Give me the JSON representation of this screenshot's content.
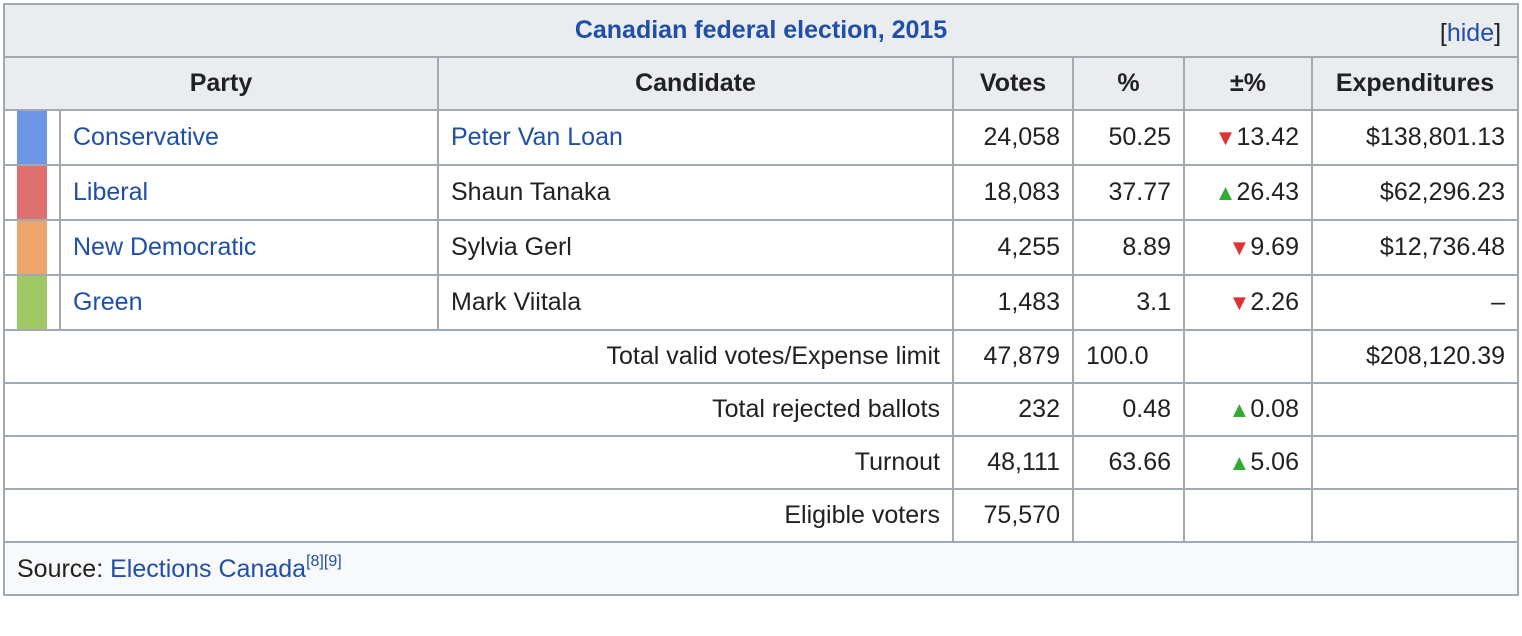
{
  "title": "Canadian federal election, 2015",
  "hide_toggle": {
    "open": "[",
    "label": "hide",
    "close": "]"
  },
  "headers": {
    "party": "Party",
    "candidate": "Candidate",
    "votes": "Votes",
    "percent": "%",
    "change": "±%",
    "expenditures": "Expenditures"
  },
  "colors": {
    "conservative": "#6d96e4",
    "liberal": "#e06f6f",
    "ndp": "#eda56e",
    "green": "#9fc965",
    "link": "#1f4fa8",
    "down": "#dd3333",
    "up": "#33aa33"
  },
  "rows": [
    {
      "party": "Conservative",
      "candidate": "Peter Van Loan",
      "votes": "24,058",
      "percent": "50.25",
      "arrow": "▼",
      "change": "13.42",
      "expenditures": "$138,801.13"
    },
    {
      "party": "Liberal",
      "candidate": "Shaun Tanaka",
      "votes": "18,083",
      "percent": "37.77",
      "arrow": "▲",
      "change": "26.43",
      "expenditures": "$62,296.23"
    },
    {
      "party": "New Democratic",
      "candidate": "Sylvia Gerl",
      "votes": "4,255",
      "percent": "8.89",
      "arrow": "▼",
      "change": "9.69",
      "expenditures": "$12,736.48"
    },
    {
      "party": "Green",
      "candidate": "Mark Viitala",
      "votes": "1,483",
      "percent": "3.1",
      "arrow": "▼",
      "change": "2.26",
      "expenditures": "–"
    }
  ],
  "totals": {
    "valid": {
      "label": "Total valid votes/Expense limit",
      "votes": "47,879",
      "percent": "100.0",
      "expenditures": "$208,120.39"
    },
    "rejected": {
      "label": "Total rejected ballots",
      "votes": "232",
      "percent": "0.48",
      "arrow": "▲",
      "change": "0.08"
    },
    "turnout": {
      "label": "Turnout",
      "votes": "48,111",
      "percent": "63.66",
      "arrow": "▲",
      "change": "5.06"
    },
    "eligible": {
      "label": "Eligible voters",
      "votes": "75,570"
    }
  },
  "source": {
    "prefix": "Source: ",
    "link": "Elections Canada",
    "ref1": "[8]",
    "ref2": "[9]"
  }
}
